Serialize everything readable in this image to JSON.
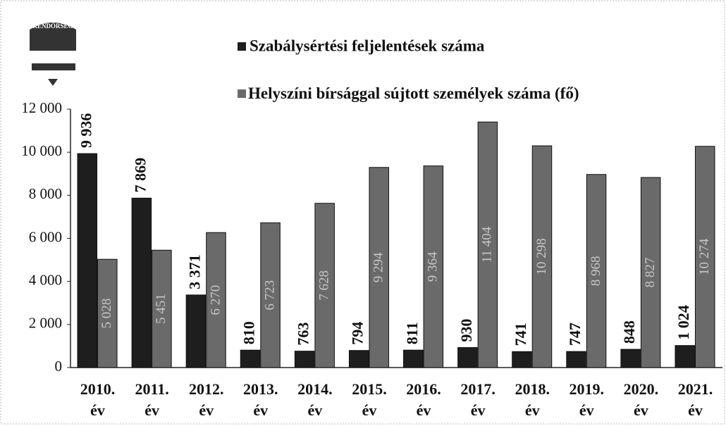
{
  "logo_text": "RENDŐRSÉG",
  "chart_data": {
    "type": "bar",
    "categories": [
      "2010. év",
      "2011. év",
      "2012. év",
      "2013. év",
      "2014. év",
      "2015. év",
      "2016. év",
      "2017. év",
      "2018. év",
      "2019. év",
      "2020. év",
      "2021. év"
    ],
    "series": [
      {
        "name": "Szabálysértési feljelentések száma",
        "color": "#1e1e1e",
        "values": [
          9936,
          7869,
          3371,
          810,
          763,
          794,
          811,
          930,
          741,
          747,
          848,
          1024
        ],
        "value_labels": [
          "9 936",
          "7 869",
          "3 371",
          "810",
          "763",
          "794",
          "811",
          "930",
          "741",
          "747",
          "848",
          "1 024"
        ]
      },
      {
        "name": "Helyszíni bírsággal sújtott személyek száma (fő)",
        "color": "#6a6a6a",
        "values": [
          5028,
          5451,
          6270,
          6723,
          7628,
          9294,
          9364,
          11404,
          10298,
          8968,
          8827,
          10274
        ],
        "value_labels": [
          "5 028",
          "5 451",
          "6 270",
          "6 723",
          "7 628",
          "9 294",
          "9 364",
          "11 404",
          "10 298",
          "8 968",
          "8 827",
          "10 274"
        ]
      }
    ],
    "ylim": [
      0,
      12000
    ],
    "yticks": [
      0,
      {
        "value": 2000,
        "label": "2 000"
      },
      {
        "value": 4000,
        "label": "4 000"
      },
      {
        "value": 6000,
        "label": "6 000"
      },
      {
        "value": 8000,
        "label": "8 000"
      },
      {
        "value": 10000,
        "label": "10 000"
      },
      {
        "value": 12000,
        "label": "12 000"
      }
    ],
    "grid": false
  }
}
